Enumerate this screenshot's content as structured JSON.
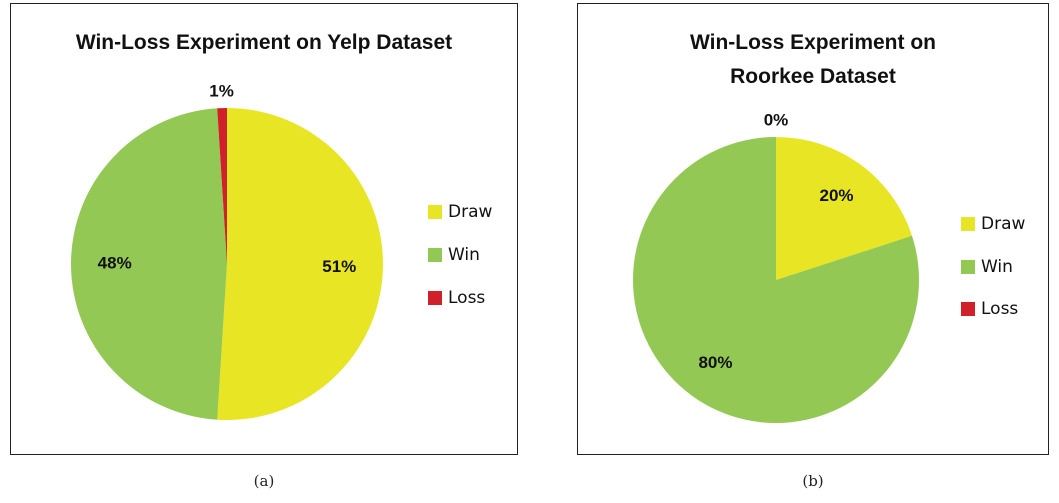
{
  "chart_data": [
    {
      "type": "pie",
      "title": "Win-Loss Experiment on Yelp Dataset",
      "caption": "(a)",
      "categories": [
        "Draw",
        "Win",
        "Loss"
      ],
      "values": [
        51,
        48,
        1
      ],
      "value_labels": [
        "51%",
        "48%",
        "1%"
      ],
      "colors": [
        "#e8e624",
        "#92c853",
        "#d0202a"
      ],
      "legend": "right"
    },
    {
      "type": "pie",
      "title": "Win-Loss Experiment on Roorkee Dataset",
      "caption": "(b)",
      "categories": [
        "Draw",
        "Win",
        "Loss"
      ],
      "values": [
        20,
        80,
        0
      ],
      "value_labels": [
        "20%",
        "80%",
        "0%"
      ],
      "colors": [
        "#e8e624",
        "#92c853",
        "#d0202a"
      ],
      "legend": "right"
    }
  ]
}
